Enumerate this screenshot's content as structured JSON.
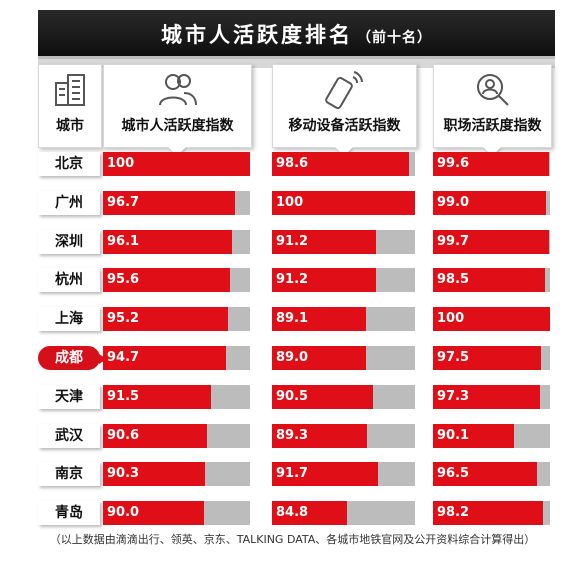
{
  "title": {
    "main": "城市人活跃度排名",
    "sub": "（前十名）"
  },
  "columns": [
    {
      "label": "城市",
      "icon": "buildings-icon"
    },
    {
      "label": "城市人活跃度指数",
      "icon": "people-icon"
    },
    {
      "label": "移动设备活跃指数",
      "icon": "mobile-phone-icon"
    },
    {
      "label": "职场活跃度指数",
      "icon": "magnifier-person-icon"
    }
  ],
  "highlight_city": "成都",
  "colors": {
    "bar": "#e00f17",
    "track": "#bcbcbc",
    "highlight": "#d6101b"
  },
  "chart_data": {
    "type": "bar",
    "categories": [
      "北京",
      "广州",
      "深圳",
      "杭州",
      "上海",
      "成都",
      "天津",
      "武汉",
      "南京",
      "青岛"
    ],
    "series": [
      {
        "name": "城市人活跃度指数",
        "values": [
          100,
          96.7,
          96.1,
          95.6,
          95.2,
          94.7,
          91.5,
          90.6,
          90.3,
          90.0
        ],
        "labels": [
          "100",
          "96.7",
          "96.1",
          "95.6",
          "95.2",
          "94.7",
          "91.5",
          "90.6",
          "90.3",
          "90.0"
        ]
      },
      {
        "name": "移动设备活跃指数",
        "values": [
          98.6,
          100,
          91.2,
          91.2,
          89.1,
          89.0,
          90.5,
          89.3,
          91.7,
          84.8
        ],
        "labels": [
          "98.6",
          "100",
          "91.2",
          "91.2",
          "89.1",
          "89.0",
          "90.5",
          "89.3",
          "91.7",
          "84.8"
        ]
      },
      {
        "name": "职场活跃度指数",
        "values": [
          99.6,
          99.0,
          99.7,
          98.5,
          100,
          97.5,
          97.3,
          90.1,
          96.5,
          98.2
        ],
        "labels": [
          "99.6",
          "99.0",
          "99.7",
          "98.5",
          "100",
          "97.5",
          "97.3",
          "90.1",
          "96.5",
          "98.2"
        ]
      }
    ]
  },
  "footnote": "（以上数据由滴滴出行、领英、京东、TALKING DATA、各城市地铁官网及公开资料综合计算得出）"
}
